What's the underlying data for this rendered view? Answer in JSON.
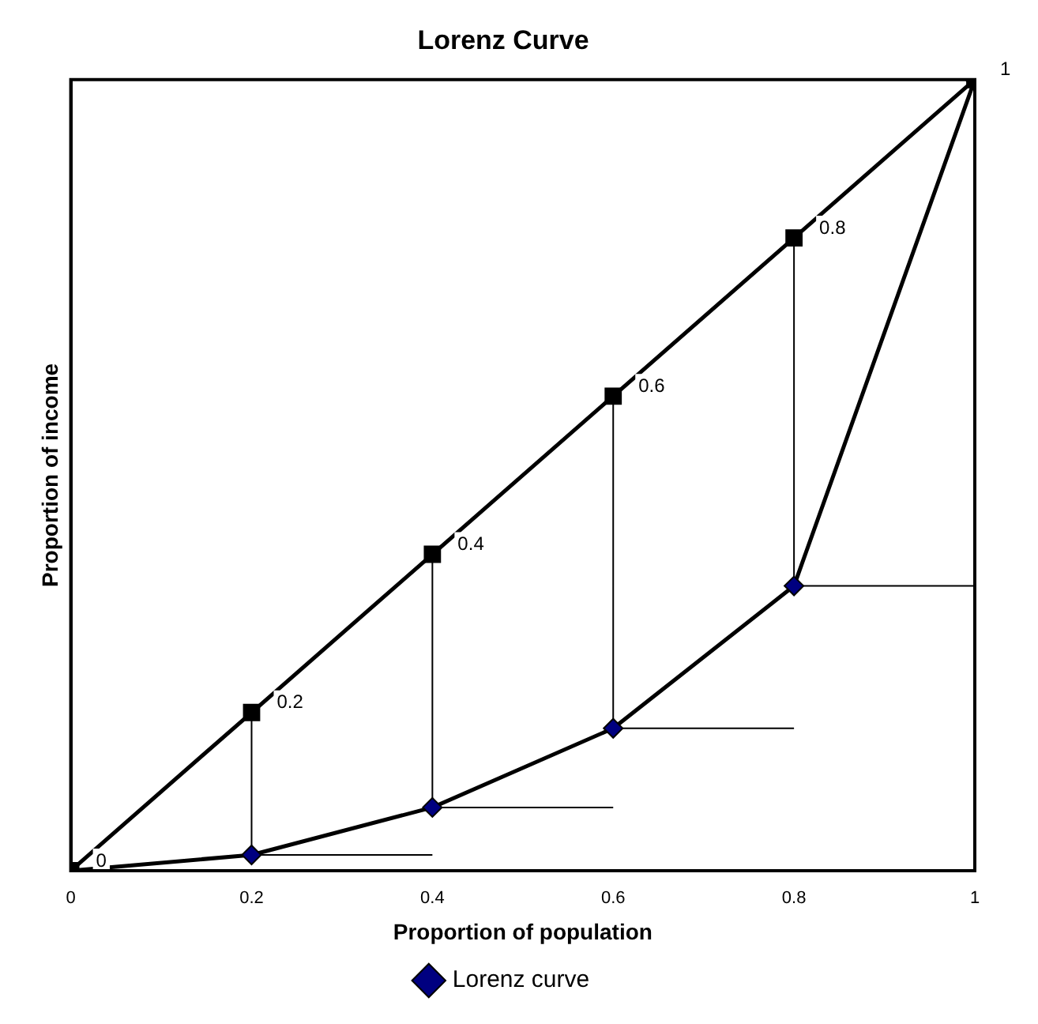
{
  "chart_data": {
    "type": "line",
    "title": "Lorenz Curve",
    "xlabel": "Proportion of population",
    "ylabel": "Proportion of income",
    "x": [
      0,
      0.2,
      0.4,
      0.6,
      0.8,
      1
    ],
    "series": [
      {
        "color": "#000000",
        "marker": "square",
        "values": [
          0,
          0.2,
          0.4,
          0.6,
          0.8,
          1
        ],
        "value_labels": [
          "0",
          "0.2",
          "0.4",
          "0.6",
          "0.8",
          "1"
        ]
      },
      {
        "name": "Lorenz curve",
        "color": "#000080",
        "marker": "diamond",
        "values": [
          0,
          0.02,
          0.08,
          0.18,
          0.36,
          1
        ]
      },
      {
        "color": "#000000",
        "marker": "none",
        "x": [
          0.2,
          0.2,
          null,
          0.2,
          0.4,
          null,
          0.4,
          0.4,
          null,
          0.4,
          0.6,
          null,
          0.6,
          0.6,
          null,
          0.6,
          0.8,
          null,
          0.8,
          0.8,
          null,
          0.8,
          1
        ],
        "values": [
          0.02,
          0.2,
          null,
          0.02,
          0.02,
          null,
          0.08,
          0.4,
          null,
          0.08,
          0.08,
          null,
          0.18,
          0.6,
          null,
          0.18,
          0.18,
          null,
          0.36,
          0.8,
          null,
          0.36,
          0.36
        ]
      }
    ],
    "xlim": [
      0,
      1
    ],
    "xticks": [
      0,
      0.2,
      0.4,
      0.6,
      0.8,
      1
    ],
    "ylim": [
      0,
      1
    ],
    "tick_labels": "x",
    "grid": false,
    "legend": "bottom"
  }
}
